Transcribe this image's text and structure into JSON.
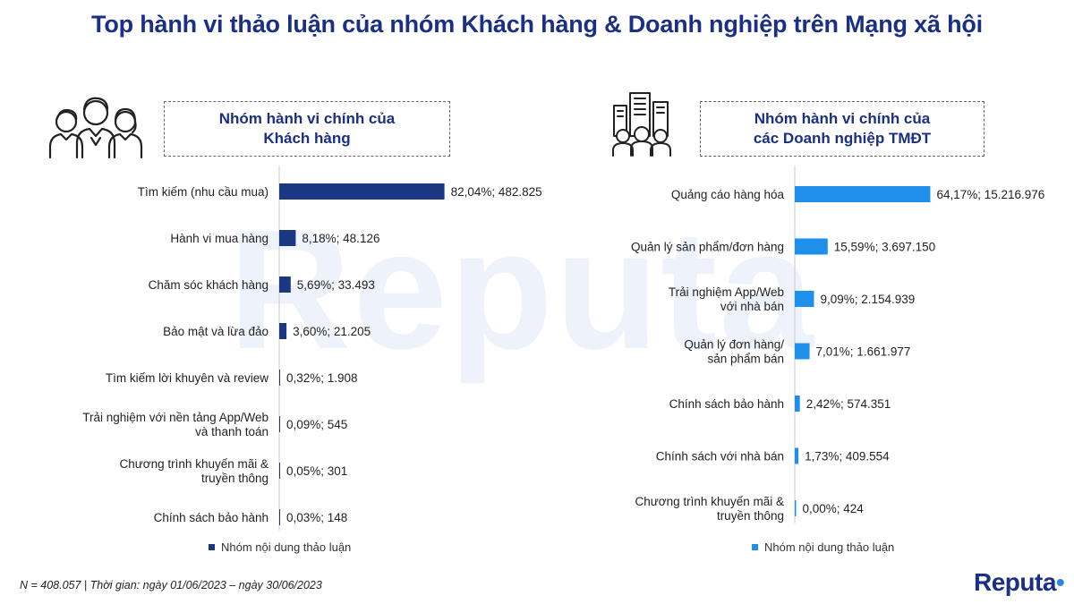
{
  "title": "Top hành vi thảo luận của nhóm Khách hàng & Doanh nghiệp trên Mạng xã hội",
  "watermark": "Reputa",
  "colors": {
    "title": "#1b2f84",
    "customers_bar": "#1b3784",
    "business_bar": "#1e90ec"
  },
  "panels": {
    "customers": {
      "icon": "group-people-icon",
      "header_line1": "Nhóm hành vi chính của",
      "header_line2": "Khách hàng",
      "legend": "Nhóm nội dung thảo luận"
    },
    "business": {
      "icon": "buildings-people-icon",
      "header_line1": "Nhóm hành vi chính của",
      "header_line2": "các Doanh nghiệp TMĐT",
      "legend": "Nhóm nội dung thảo luận"
    }
  },
  "chart_data": [
    {
      "type": "bar",
      "orientation": "horizontal",
      "categories": [
        [
          "Tìm kiếm (nhu cầu mua)"
        ],
        [
          "Hành vi mua hàng"
        ],
        [
          "Chăm sóc khách hàng"
        ],
        [
          "Bảo mật và lừa đảo"
        ],
        [
          "Tìm kiếm lời khuyên và review"
        ],
        [
          "Trải nghiệm với nền tảng App/Web",
          "và thanh toán"
        ],
        [
          "Chương trình khuyến mãi &",
          "truyền thông"
        ],
        [
          "Chính sách bảo hành"
        ]
      ],
      "series": [
        {
          "name": "Nhóm nội dung thảo luận",
          "values": [
            82.04,
            8.18,
            5.69,
            3.6,
            0.32,
            0.09,
            0.05,
            0.03
          ],
          "labels": [
            "82,04%;  482.825",
            "8,18%;  48.126",
            "5,69%;  33.493",
            "3,60%;  21.205",
            "0,32%;  1.908",
            "0,09%;  545",
            "0,05%;  301",
            "0,03%;  148"
          ]
        }
      ],
      "xlim": [
        0,
        100
      ],
      "legend": "bottom"
    },
    {
      "type": "bar",
      "orientation": "horizontal",
      "categories": [
        [
          "Quảng cáo hàng hóa"
        ],
        [
          "Quản lý sản phẩm/đơn hàng"
        ],
        [
          "Trải nghiệm App/Web",
          "với nhà bán"
        ],
        [
          "Quản lý đơn hàng/",
          "sản phẩm bán"
        ],
        [
          "Chính sách bảo hành"
        ],
        [
          "Chính sách với nhà bán"
        ],
        [
          "Chương trình khuyến mãi &",
          "truyền thông"
        ]
      ],
      "series": [
        {
          "name": "Nhóm nội dung thảo luận",
          "values": [
            64.17,
            15.59,
            9.09,
            7.01,
            2.42,
            1.73,
            0.0
          ],
          "labels": [
            "64,17%; 15.216.976",
            "15,59%; 3.697.150",
            "9,09%; 2.154.939",
            "7,01%; 1.661.977",
            "2,42%; 574.351",
            "1,73%; 409.554",
            "0,00%; 424"
          ]
        }
      ],
      "xlim": [
        0,
        100
      ],
      "legend": "bottom"
    }
  ],
  "footnote": "N = 408.057 | Thời gian: ngày 01/06/2023 – ngày 30/06/2023",
  "logo": {
    "text": "Reputa",
    "icon": "reputa-logo-mark"
  }
}
